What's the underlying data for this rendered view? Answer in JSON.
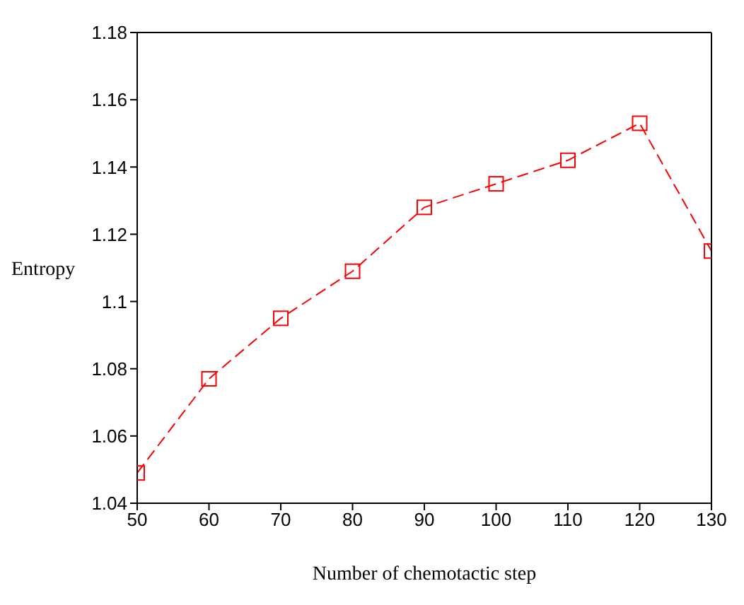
{
  "chart_data": {
    "type": "line",
    "xlabel": "Number of chemotactic step",
    "ylabel": "Entropy",
    "x": [
      50,
      60,
      70,
      80,
      90,
      100,
      110,
      120,
      130
    ],
    "series": [
      {
        "color": "#ff0000",
        "values": [
          1.049,
          1.077,
          1.095,
          1.109,
          1.128,
          1.135,
          1.142,
          1.153,
          1.115
        ]
      }
    ],
    "xlim": [
      50,
      130
    ],
    "xticks": [
      50,
      60,
      70,
      80,
      90,
      100,
      110,
      120,
      130
    ],
    "ylim": [
      1.04,
      1.18
    ],
    "yticks": [
      1.04,
      1.06,
      1.08,
      {
        "value": 1.1,
        "label": "1.1"
      },
      1.12,
      1.14,
      1.16,
      1.18
    ],
    "grid": false,
    "legend": false,
    "marker": "square",
    "line_style": "dashed"
  }
}
